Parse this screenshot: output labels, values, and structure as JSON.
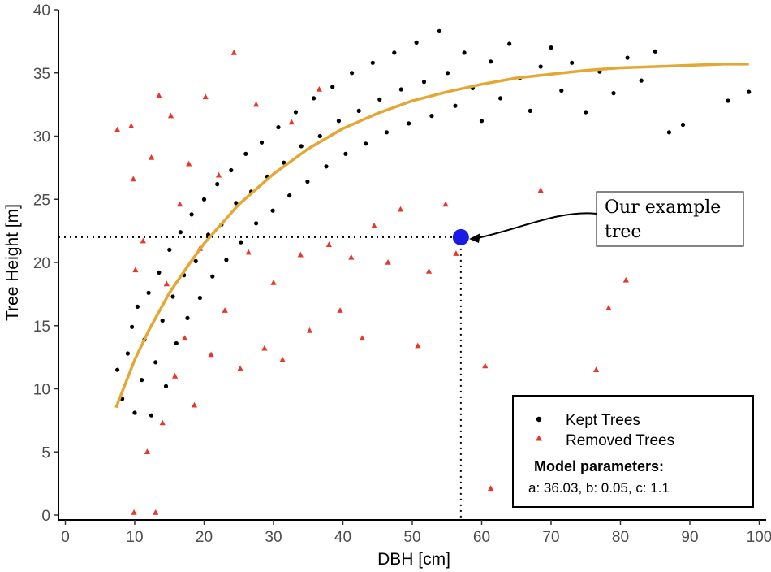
{
  "chart_data": {
    "type": "scatter",
    "xlabel": "DBH [cm]",
    "ylabel": "Tree Height [m]",
    "xlim": [
      0,
      100
    ],
    "ylim": [
      0,
      40
    ],
    "x_ticks": [
      0,
      10,
      20,
      30,
      40,
      50,
      60,
      70,
      80,
      90,
      100
    ],
    "y_ticks": [
      0,
      5,
      10,
      15,
      20,
      25,
      30,
      35,
      40
    ],
    "grid": false,
    "legend_position": "bottom-right",
    "series": [
      {
        "name": "Kept Trees",
        "marker": "circle",
        "color": "#000000",
        "points": [
          [
            7.5,
            11.5
          ],
          [
            8.2,
            9.2
          ],
          [
            9.0,
            12.8
          ],
          [
            9.6,
            14.9
          ],
          [
            10.0,
            8.1
          ],
          [
            10.4,
            16.5
          ],
          [
            11.0,
            10.7
          ],
          [
            11.4,
            13.9
          ],
          [
            12.0,
            17.6
          ],
          [
            12.4,
            7.9
          ],
          [
            13.0,
            12.1
          ],
          [
            13.5,
            19.2
          ],
          [
            14.0,
            15.4
          ],
          [
            14.5,
            10.2
          ],
          [
            15.0,
            21.0
          ],
          [
            15.5,
            17.3
          ],
          [
            16.0,
            13.6
          ],
          [
            16.6,
            22.4
          ],
          [
            17.1,
            19.0
          ],
          [
            17.6,
            15.6
          ],
          [
            18.2,
            23.8
          ],
          [
            18.8,
            20.1
          ],
          [
            19.4,
            17.2
          ],
          [
            20.0,
            25.0
          ],
          [
            20.6,
            22.2
          ],
          [
            21.2,
            18.9
          ],
          [
            21.9,
            26.2
          ],
          [
            22.5,
            23.0
          ],
          [
            23.2,
            20.2
          ],
          [
            23.9,
            27.3
          ],
          [
            24.6,
            24.7
          ],
          [
            25.3,
            21.6
          ],
          [
            26.0,
            28.6
          ],
          [
            26.8,
            25.6
          ],
          [
            27.5,
            23.1
          ],
          [
            28.3,
            29.5
          ],
          [
            29.1,
            26.8
          ],
          [
            29.9,
            24.1
          ],
          [
            30.7,
            30.7
          ],
          [
            31.5,
            27.9
          ],
          [
            32.3,
            25.3
          ],
          [
            33.2,
            31.9
          ],
          [
            34.0,
            29.2
          ],
          [
            34.9,
            26.4
          ],
          [
            35.8,
            33.0
          ],
          [
            36.7,
            30.0
          ],
          [
            37.6,
            27.6
          ],
          [
            38.5,
            33.9
          ],
          [
            39.4,
            31.2
          ],
          [
            40.4,
            28.6
          ],
          [
            41.3,
            35.0
          ],
          [
            42.3,
            32.0
          ],
          [
            43.3,
            29.4
          ],
          [
            44.3,
            35.8
          ],
          [
            45.3,
            32.9
          ],
          [
            46.3,
            30.3
          ],
          [
            47.4,
            36.6
          ],
          [
            48.4,
            33.7
          ],
          [
            49.5,
            31.0
          ],
          [
            50.6,
            37.4
          ],
          [
            51.7,
            34.3
          ],
          [
            52.8,
            31.6
          ],
          [
            53.9,
            38.3
          ],
          [
            55.1,
            35.0
          ],
          [
            56.2,
            32.4
          ],
          [
            57.5,
            36.6
          ],
          [
            58.7,
            33.8
          ],
          [
            60.0,
            31.2
          ],
          [
            61.3,
            35.9
          ],
          [
            62.7,
            33.0
          ],
          [
            64.0,
            37.3
          ],
          [
            65.5,
            34.6
          ],
          [
            67.0,
            32.0
          ],
          [
            68.5,
            35.5
          ],
          [
            70.0,
            37.0
          ],
          [
            71.5,
            33.6
          ],
          [
            73.0,
            35.8
          ],
          [
            75.0,
            31.9
          ],
          [
            77.0,
            35.1
          ],
          [
            79.0,
            33.4
          ],
          [
            81.0,
            36.2
          ],
          [
            83.0,
            34.4
          ],
          [
            85.0,
            36.7
          ],
          [
            87.0,
            30.3
          ],
          [
            89.0,
            30.9
          ],
          [
            95.5,
            32.8
          ],
          [
            98.5,
            33.5
          ]
        ]
      },
      {
        "name": "Removed Trees",
        "marker": "triangle",
        "color": "#e8372a",
        "points": [
          [
            7.5,
            30.5
          ],
          [
            9.5,
            30.8
          ],
          [
            9.8,
            26.6
          ],
          [
            9.9,
            0.2
          ],
          [
            10.1,
            19.4
          ],
          [
            11.2,
            21.7
          ],
          [
            11.8,
            5.0
          ],
          [
            12.4,
            28.3
          ],
          [
            13.0,
            0.2
          ],
          [
            13.5,
            33.2
          ],
          [
            14.0,
            7.3
          ],
          [
            14.6,
            18.3
          ],
          [
            15.2,
            31.6
          ],
          [
            15.8,
            11.0
          ],
          [
            16.5,
            24.6
          ],
          [
            17.2,
            14.0
          ],
          [
            17.8,
            27.8
          ],
          [
            18.6,
            8.7
          ],
          [
            19.4,
            21.1
          ],
          [
            20.2,
            33.1
          ],
          [
            21.0,
            12.7
          ],
          [
            22.1,
            26.9
          ],
          [
            23.0,
            16.2
          ],
          [
            24.3,
            36.6
          ],
          [
            25.2,
            11.6
          ],
          [
            26.4,
            20.8
          ],
          [
            27.5,
            32.5
          ],
          [
            28.7,
            13.2
          ],
          [
            30.0,
            18.4
          ],
          [
            31.3,
            12.3
          ],
          [
            32.6,
            31.1
          ],
          [
            33.9,
            20.6
          ],
          [
            35.2,
            14.6
          ],
          [
            36.6,
            33.7
          ],
          [
            38.0,
            21.4
          ],
          [
            39.6,
            16.2
          ],
          [
            41.2,
            20.4
          ],
          [
            42.8,
            14.0
          ],
          [
            44.5,
            22.9
          ],
          [
            46.5,
            20.0
          ],
          [
            48.3,
            24.2
          ],
          [
            50.8,
            13.4
          ],
          [
            52.4,
            19.3
          ],
          [
            54.8,
            24.6
          ],
          [
            56.3,
            20.7
          ],
          [
            60.5,
            11.8
          ],
          [
            61.3,
            2.1
          ],
          [
            68.5,
            25.7
          ],
          [
            76.5,
            11.5
          ],
          [
            78.3,
            16.4
          ],
          [
            80.8,
            18.6
          ]
        ]
      }
    ],
    "model_curve": {
      "name": "fitted model",
      "color": "#e3a834",
      "x": [
        7.3,
        10,
        12,
        15,
        18,
        20,
        25,
        30,
        35,
        40,
        45,
        50,
        55,
        60,
        65,
        70,
        75,
        80,
        85,
        90,
        95,
        98.5
      ],
      "y": [
        8.5,
        12.3,
        14.6,
        17.6,
        20.0,
        21.5,
        24.6,
        27.0,
        29.0,
        30.6,
        31.8,
        32.8,
        33.5,
        34.1,
        34.6,
        34.9,
        35.2,
        35.4,
        35.5,
        35.6,
        35.7,
        35.7
      ]
    },
    "highlight_point": {
      "x": 57,
      "y": 22,
      "color": "#1a1ae6"
    },
    "annotation": {
      "line1": "Our example",
      "line2": "tree"
    },
    "legend": {
      "kept_label": "Kept Trees",
      "removed_label": "Removed Trees",
      "params_title": "Model parameters:",
      "params_text": "a: 36.03, b: 0.05, c: 1.1"
    }
  }
}
